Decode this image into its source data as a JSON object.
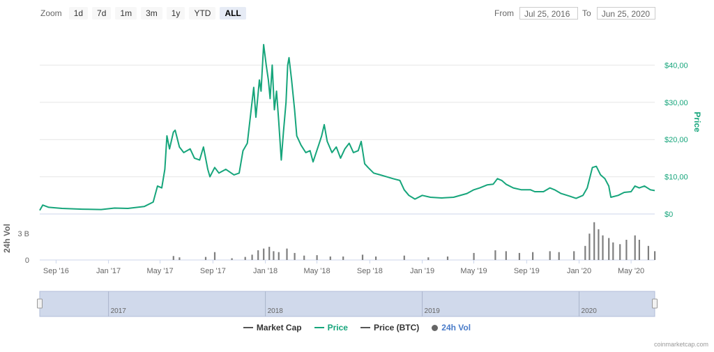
{
  "toolbar": {
    "zoom_label": "Zoom",
    "zoom_buttons": [
      "1d",
      "7d",
      "1m",
      "3m",
      "1y",
      "YTD",
      "ALL"
    ],
    "active_zoom": "ALL",
    "from_label": "From",
    "from_value": "Jul 25, 2016",
    "to_label": "To",
    "to_value": "Jun 25, 2020"
  },
  "legend": {
    "market_cap": "Market Cap",
    "price": "Price",
    "price_btc": "Price (BTC)",
    "vol": "24h Vol"
  },
  "credit": "coinmarketcap.com",
  "colors": {
    "price": "#16a57b",
    "volume": "#7f7f7f",
    "grid": "#e6e6e6",
    "navigator": "#c8d2e8",
    "link": "#4a7cc9"
  },
  "chart_data": {
    "type": "line",
    "x_range": [
      "2016-07-25",
      "2020-06-25"
    ],
    "price_axis": {
      "label": "Price",
      "ylim": [
        0,
        50
      ],
      "ticks": [
        "$0",
        "$10,00",
        "$20,00",
        "$30,00",
        "$40,00"
      ],
      "tick_values": [
        0,
        10,
        20,
        30,
        40
      ]
    },
    "volume_axis": {
      "label": "24h Vol",
      "ticks": [
        "0",
        "3 B"
      ],
      "tick_values": [
        0,
        3
      ]
    },
    "x_ticks": [
      "Sep '16",
      "Jan '17",
      "May '17",
      "Sep '17",
      "Jan '18",
      "May '18",
      "Sep '18",
      "Jan '19",
      "May '19",
      "Sep '19",
      "Jan '20",
      "May '20"
    ],
    "x_tick_dates": [
      "2016-09-01",
      "2017-01-01",
      "2017-05-01",
      "2017-09-01",
      "2018-01-01",
      "2018-05-01",
      "2018-09-01",
      "2019-01-01",
      "2019-05-01",
      "2019-09-01",
      "2020-01-01",
      "2020-05-01"
    ],
    "navigator_labels": [
      "2017",
      "2018",
      "2019",
      "2020"
    ],
    "navigator_dates": [
      "2017-01-01",
      "2018-01-01",
      "2019-01-01",
      "2020-01-01"
    ],
    "series": [
      {
        "name": "Price",
        "points": [
          [
            "2016-07-25",
            1.0
          ],
          [
            "2016-08-01",
            2.4
          ],
          [
            "2016-08-15",
            1.8
          ],
          [
            "2016-09-15",
            1.5
          ],
          [
            "2016-11-01",
            1.3
          ],
          [
            "2016-12-15",
            1.2
          ],
          [
            "2017-01-15",
            1.6
          ],
          [
            "2017-02-15",
            1.5
          ],
          [
            "2017-03-25",
            2.0
          ],
          [
            "2017-04-15",
            3.2
          ],
          [
            "2017-04-25",
            7.5
          ],
          [
            "2017-05-05",
            7.0
          ],
          [
            "2017-05-12",
            12.0
          ],
          [
            "2017-05-17",
            21.0
          ],
          [
            "2017-05-23",
            17.5
          ],
          [
            "2017-06-01",
            22.0
          ],
          [
            "2017-06-05",
            22.5
          ],
          [
            "2017-06-15",
            18.0
          ],
          [
            "2017-06-25",
            16.5
          ],
          [
            "2017-07-10",
            17.5
          ],
          [
            "2017-07-20",
            15.0
          ],
          [
            "2017-08-01",
            14.5
          ],
          [
            "2017-08-10",
            18.0
          ],
          [
            "2017-08-20",
            12.0
          ],
          [
            "2017-08-25",
            10.0
          ],
          [
            "2017-09-05",
            12.5
          ],
          [
            "2017-09-15",
            11.0
          ],
          [
            "2017-10-01",
            12.0
          ],
          [
            "2017-10-20",
            10.5
          ],
          [
            "2017-11-01",
            11.0
          ],
          [
            "2017-11-10",
            17.0
          ],
          [
            "2017-11-20",
            19.0
          ],
          [
            "2017-11-28",
            27.0
          ],
          [
            "2017-12-05",
            34.0
          ],
          [
            "2017-12-10",
            26.0
          ],
          [
            "2017-12-18",
            36.0
          ],
          [
            "2017-12-22",
            33.0
          ],
          [
            "2017-12-28",
            45.5
          ],
          [
            "2018-01-03",
            40.0
          ],
          [
            "2018-01-08",
            36.0
          ],
          [
            "2018-01-12",
            31.0
          ],
          [
            "2018-01-17",
            40.0
          ],
          [
            "2018-01-22",
            28.0
          ],
          [
            "2018-01-27",
            33.0
          ],
          [
            "2018-02-01",
            25.0
          ],
          [
            "2018-02-07",
            14.5
          ],
          [
            "2018-02-12",
            22.0
          ],
          [
            "2018-02-18",
            30.0
          ],
          [
            "2018-02-22",
            40.0
          ],
          [
            "2018-02-25",
            42.0
          ],
          [
            "2018-03-03",
            36.0
          ],
          [
            "2018-03-10",
            28.0
          ],
          [
            "2018-03-15",
            21.0
          ],
          [
            "2018-03-25",
            18.5
          ],
          [
            "2018-04-05",
            16.5
          ],
          [
            "2018-04-15",
            17.0
          ],
          [
            "2018-04-22",
            14.0
          ],
          [
            "2018-05-05",
            18.5
          ],
          [
            "2018-05-12",
            21.0
          ],
          [
            "2018-05-18",
            24.0
          ],
          [
            "2018-05-25",
            19.5
          ],
          [
            "2018-06-05",
            16.5
          ],
          [
            "2018-06-15",
            18.0
          ],
          [
            "2018-06-25",
            15.0
          ],
          [
            "2018-07-05",
            17.5
          ],
          [
            "2018-07-15",
            19.0
          ],
          [
            "2018-07-25",
            16.5
          ],
          [
            "2018-08-05",
            17.0
          ],
          [
            "2018-08-12",
            19.5
          ],
          [
            "2018-08-20",
            13.5
          ],
          [
            "2018-08-28",
            12.5
          ],
          [
            "2018-09-10",
            11.0
          ],
          [
            "2018-09-25",
            10.5
          ],
          [
            "2018-10-10",
            10.0
          ],
          [
            "2018-10-25",
            9.5
          ],
          [
            "2018-11-10",
            9.0
          ],
          [
            "2018-11-20",
            6.5
          ],
          [
            "2018-12-01",
            5.0
          ],
          [
            "2018-12-15",
            4.0
          ],
          [
            "2019-01-01",
            5.0
          ],
          [
            "2019-01-20",
            4.5
          ],
          [
            "2019-02-15",
            4.3
          ],
          [
            "2019-03-15",
            4.5
          ],
          [
            "2019-04-15",
            5.5
          ],
          [
            "2019-05-01",
            6.5
          ],
          [
            "2019-05-15",
            7.0
          ],
          [
            "2019-06-01",
            7.8
          ],
          [
            "2019-06-15",
            8.0
          ],
          [
            "2019-06-25",
            9.5
          ],
          [
            "2019-07-05",
            9.0
          ],
          [
            "2019-07-15",
            8.0
          ],
          [
            "2019-08-01",
            7.0
          ],
          [
            "2019-08-20",
            6.5
          ],
          [
            "2019-09-10",
            6.5
          ],
          [
            "2019-09-20",
            6.0
          ],
          [
            "2019-10-10",
            6.0
          ],
          [
            "2019-10-25",
            7.0
          ],
          [
            "2019-11-05",
            6.5
          ],
          [
            "2019-11-20",
            5.5
          ],
          [
            "2019-12-10",
            4.8
          ],
          [
            "2019-12-25",
            4.2
          ],
          [
            "2020-01-10",
            5.0
          ],
          [
            "2020-01-20",
            7.0
          ],
          [
            "2020-02-01",
            12.5
          ],
          [
            "2020-02-10",
            12.8
          ],
          [
            "2020-02-20",
            10.5
          ],
          [
            "2020-03-01",
            9.5
          ],
          [
            "2020-03-10",
            7.5
          ],
          [
            "2020-03-15",
            4.5
          ],
          [
            "2020-04-01",
            5.0
          ],
          [
            "2020-04-15",
            5.8
          ],
          [
            "2020-05-01",
            6.0
          ],
          [
            "2020-05-10",
            7.5
          ],
          [
            "2020-05-20",
            7.0
          ],
          [
            "2020-06-01",
            7.5
          ],
          [
            "2020-06-15",
            6.5
          ],
          [
            "2020-06-25",
            6.3
          ]
        ]
      },
      {
        "name": "24h Vol",
        "unit": "billion USD",
        "points": [
          [
            "2017-06-01",
            0.45
          ],
          [
            "2017-06-15",
            0.3
          ],
          [
            "2017-08-15",
            0.35
          ],
          [
            "2017-09-05",
            0.9
          ],
          [
            "2017-10-15",
            0.2
          ],
          [
            "2017-11-15",
            0.35
          ],
          [
            "2017-12-01",
            0.6
          ],
          [
            "2017-12-15",
            1.1
          ],
          [
            "2017-12-28",
            1.3
          ],
          [
            "2018-01-10",
            1.5
          ],
          [
            "2018-01-20",
            1.0
          ],
          [
            "2018-02-01",
            0.9
          ],
          [
            "2018-02-20",
            1.3
          ],
          [
            "2018-03-10",
            0.8
          ],
          [
            "2018-04-01",
            0.5
          ],
          [
            "2018-05-01",
            0.55
          ],
          [
            "2018-06-01",
            0.4
          ],
          [
            "2018-07-01",
            0.4
          ],
          [
            "2018-08-15",
            0.6
          ],
          [
            "2018-09-15",
            0.4
          ],
          [
            "2018-11-20",
            0.5
          ],
          [
            "2019-01-15",
            0.3
          ],
          [
            "2019-03-01",
            0.4
          ],
          [
            "2019-05-01",
            0.8
          ],
          [
            "2019-06-20",
            1.1
          ],
          [
            "2019-07-15",
            1.0
          ],
          [
            "2019-08-15",
            0.8
          ],
          [
            "2019-09-15",
            0.9
          ],
          [
            "2019-10-25",
            1.0
          ],
          [
            "2019-11-15",
            0.9
          ],
          [
            "2019-12-20",
            1.0
          ],
          [
            "2020-01-15",
            1.6
          ],
          [
            "2020-01-25",
            3.0
          ],
          [
            "2020-02-05",
            4.3
          ],
          [
            "2020-02-15",
            3.5
          ],
          [
            "2020-02-25",
            2.8
          ],
          [
            "2020-03-10",
            2.5
          ],
          [
            "2020-03-20",
            2.0
          ],
          [
            "2020-04-05",
            1.8
          ],
          [
            "2020-04-20",
            2.3
          ],
          [
            "2020-05-10",
            2.8
          ],
          [
            "2020-05-20",
            2.3
          ],
          [
            "2020-06-10",
            1.6
          ],
          [
            "2020-06-25",
            1.0
          ]
        ]
      }
    ]
  }
}
